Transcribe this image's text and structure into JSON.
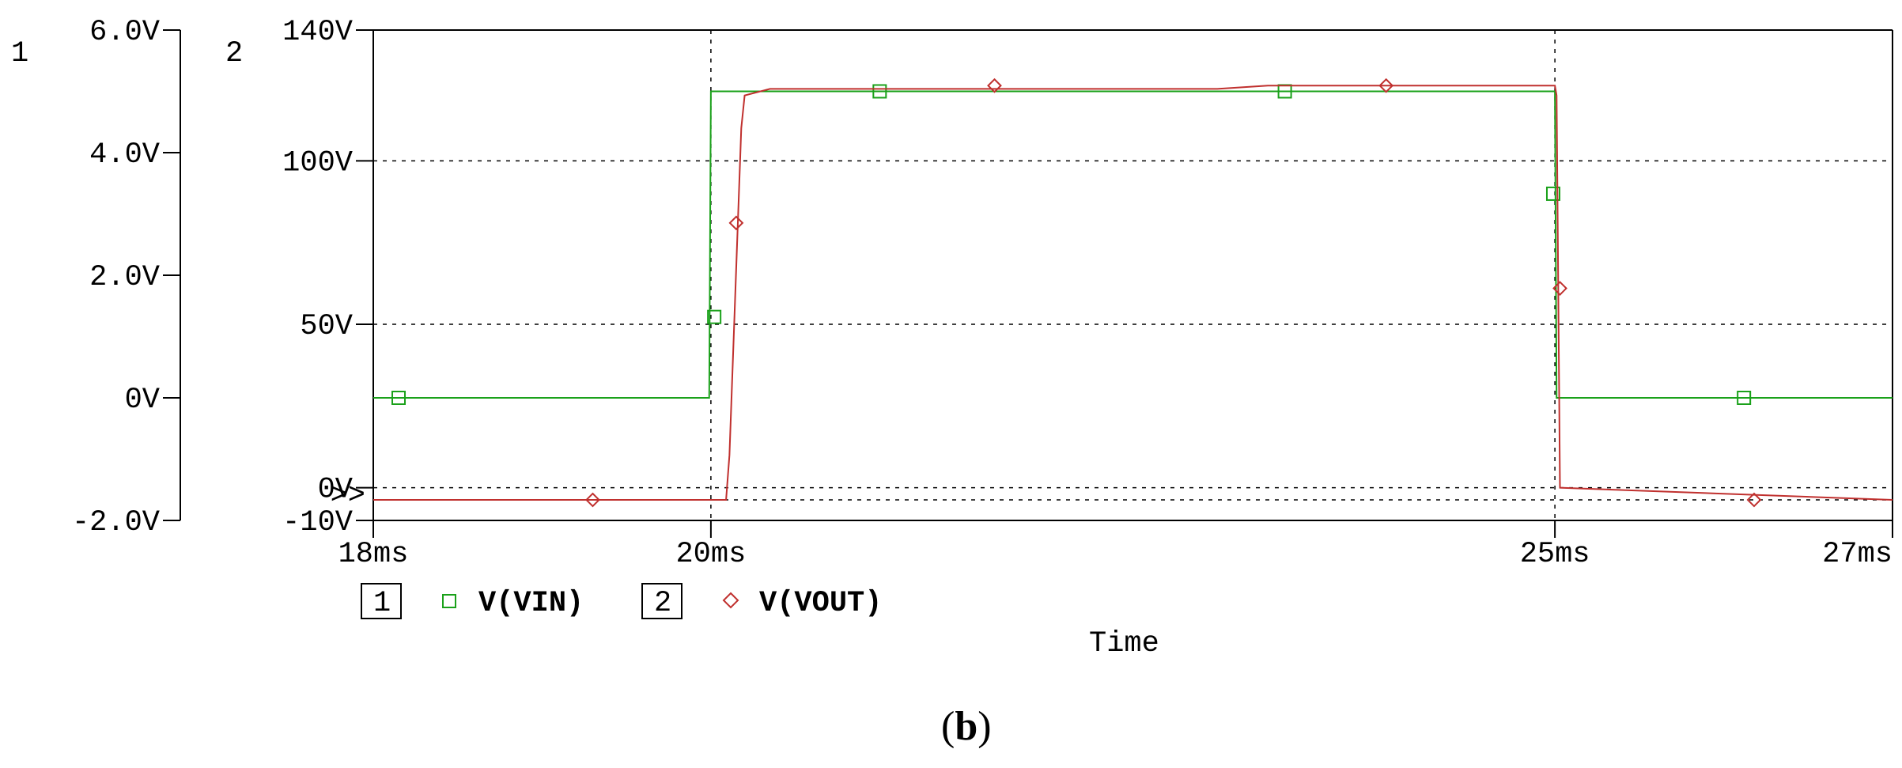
{
  "caption": {
    "open": "(",
    "letter": "b",
    "close": ")"
  },
  "chart_data": {
    "type": "line",
    "xlabel": "Time",
    "xlim": [
      18,
      27
    ],
    "x_unit": "ms",
    "x_ticks": [
      "18ms",
      "20ms",
      "25ms",
      "27ms"
    ],
    "x_tick_values": [
      18,
      20,
      25,
      27
    ],
    "grid": true,
    "axes": [
      {
        "id": "1",
        "label": "1",
        "ylim": [
          -2.0,
          6.0
        ],
        "ticks": [
          "6.0V",
          "4.0V",
          "2.0V",
          "0V",
          "-2.0V"
        ],
        "tick_values": [
          6.0,
          4.0,
          2.0,
          0,
          -2.0
        ]
      },
      {
        "id": "2",
        "label": "2",
        "ylim": [
          -10,
          140
        ],
        "ticks": [
          "140V",
          "100V",
          "50V",
          "0V",
          "-10V"
        ],
        "tick_values": [
          140,
          100,
          50,
          0,
          -10
        ],
        "marker_label": ">>"
      }
    ],
    "series": [
      {
        "name": "V(VIN)",
        "axis": "1",
        "axis_label": "1",
        "color": "#1aa11a",
        "marker": "square",
        "x": [
          18,
          19.99,
          20.0,
          25.0,
          25.01,
          27
        ],
        "y": [
          0,
          0,
          5.0,
          5.0,
          0,
          0
        ],
        "marker_x": [
          18.15,
          20.02,
          21.0,
          23.4,
          24.99,
          26.12
        ],
        "marker_y": [
          0,
          1.32,
          5.0,
          5.0,
          3.33,
          0
        ]
      },
      {
        "name": "V(VOUT)",
        "axis": "2",
        "axis_label": "2",
        "color": "#c0302e",
        "marker": "diamond",
        "x": [
          18,
          20.09,
          20.11,
          20.18,
          20.2,
          20.35,
          23.0,
          23.3,
          25.0,
          25.01,
          25.03,
          27
        ],
        "y": [
          -10,
          -10,
          10,
          110,
          120,
          122,
          122,
          123,
          123,
          120,
          0,
          -10
        ],
        "marker_x": [
          19.3,
          20.15,
          21.68,
          24.0,
          25.03,
          26.18
        ],
        "marker_y": [
          -10,
          81,
          123,
          123,
          61,
          -10
        ]
      }
    ]
  }
}
